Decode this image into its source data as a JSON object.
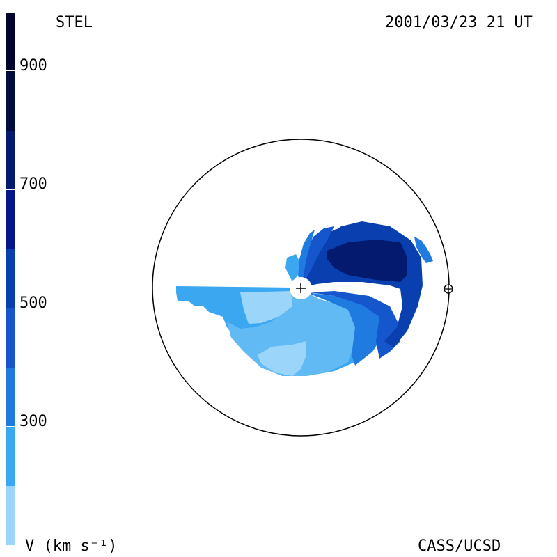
{
  "header": {
    "source": "STEL",
    "datetime": "2001/03/23 21 UT"
  },
  "footer": {
    "credit": "CASS/UCSD",
    "quantity_label": "V (km s⁻¹)"
  },
  "colorbar": {
    "ticks": [
      "900",
      "700",
      "500",
      "300"
    ],
    "colors": [
      "#02062f",
      "#041a5e",
      "#022a8f",
      "#0a3fb0",
      "#1555cc",
      "#1f7be0",
      "#3aa7f0",
      "#9cd5fa"
    ]
  },
  "plot": {
    "sun_marker": "+",
    "earth_marker": "earth-icon"
  }
}
